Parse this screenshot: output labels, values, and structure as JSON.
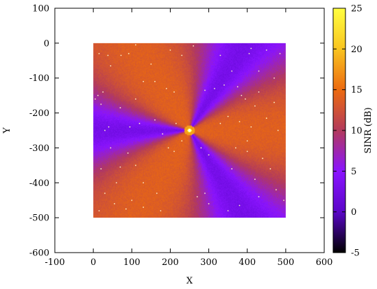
{
  "chart_data": {
    "type": "heatmap",
    "title": "",
    "xlabel": "X",
    "ylabel": "Y",
    "xlim": [
      -100,
      600
    ],
    "ylim": [
      -600,
      100
    ],
    "xticks": [
      "-100",
      "0",
      "100",
      "200",
      "300",
      "400",
      "500",
      "600"
    ],
    "yticks": [
      "100",
      "0",
      "-100",
      "-200",
      "-300",
      "-400",
      "-500",
      "-600"
    ],
    "data_region": {
      "x": [
        0,
        500
      ],
      "y": [
        -500,
        0
      ]
    },
    "base_station": {
      "x": 250,
      "y": -250
    },
    "low_sinr_sectors_deg": [
      60,
      180,
      300
    ],
    "colorbar": {
      "label": "SINR (dB)",
      "range": [
        -5,
        25
      ],
      "ticks": [
        "25",
        "20",
        "15",
        "10",
        "5",
        "0",
        "-5"
      ],
      "colors": [
        "#000000",
        "#5a06c8",
        "#8a14ff",
        "#b23a5c",
        "#ec6a10",
        "#f9c420",
        "#ffff40"
      ]
    },
    "user_points": [
      [
        15,
        -30
      ],
      [
        38,
        -35
      ],
      [
        72,
        -35
      ],
      [
        92,
        -30
      ],
      [
        45,
        -65
      ],
      [
        25,
        -140
      ],
      [
        12,
        -150
      ],
      [
        20,
        -175
      ],
      [
        5,
        -160
      ],
      [
        160,
        -110
      ],
      [
        190,
        -130
      ],
      [
        210,
        -140
      ],
      [
        230,
        -35
      ],
      [
        200,
        -20
      ],
      [
        130,
        -110
      ],
      [
        110,
        -160
      ],
      [
        70,
        -185
      ],
      [
        120,
        -230
      ],
      [
        95,
        -240
      ],
      [
        40,
        -240
      ],
      [
        30,
        -250
      ],
      [
        160,
        -220
      ],
      [
        180,
        -260
      ],
      [
        215,
        -230
      ],
      [
        230,
        -280
      ],
      [
        195,
        -300
      ],
      [
        210,
        -310
      ],
      [
        45,
        -300
      ],
      [
        90,
        -315
      ],
      [
        70,
        -355
      ],
      [
        20,
        -360
      ],
      [
        110,
        -350
      ],
      [
        60,
        -400
      ],
      [
        130,
        -400
      ],
      [
        30,
        -430
      ],
      [
        165,
        -430
      ],
      [
        100,
        -450
      ],
      [
        55,
        -460
      ],
      [
        85,
        -475
      ],
      [
        130,
        -470
      ],
      [
        175,
        -480
      ],
      [
        15,
        -480
      ],
      [
        270,
        -440
      ],
      [
        290,
        -430
      ],
      [
        300,
        -460
      ],
      [
        350,
        -480
      ],
      [
        380,
        -465
      ],
      [
        430,
        -440
      ],
      [
        475,
        -420
      ],
      [
        495,
        -450
      ],
      [
        280,
        -300
      ],
      [
        300,
        -320
      ],
      [
        370,
        -300
      ],
      [
        400,
        -310
      ],
      [
        440,
        -330
      ],
      [
        460,
        -360
      ],
      [
        420,
        -390
      ],
      [
        360,
        -360
      ],
      [
        330,
        -230
      ],
      [
        350,
        -210
      ],
      [
        380,
        -225
      ],
      [
        410,
        -240
      ],
      [
        450,
        -215
      ],
      [
        480,
        -250
      ],
      [
        400,
        -280
      ],
      [
        290,
        -135
      ],
      [
        315,
        -130
      ],
      [
        340,
        -120
      ],
      [
        375,
        -125
      ],
      [
        385,
        -150
      ],
      [
        430,
        -140
      ],
      [
        420,
        -180
      ],
      [
        470,
        -170
      ],
      [
        395,
        -160
      ],
      [
        330,
        -35
      ],
      [
        405,
        -30
      ],
      [
        450,
        -20
      ],
      [
        485,
        -30
      ],
      [
        360,
        -80
      ],
      [
        430,
        -80
      ],
      [
        470,
        -100
      ],
      [
        410,
        -15
      ],
      [
        260,
        -8
      ],
      [
        110,
        -5
      ],
      [
        150,
        -60
      ]
    ]
  }
}
